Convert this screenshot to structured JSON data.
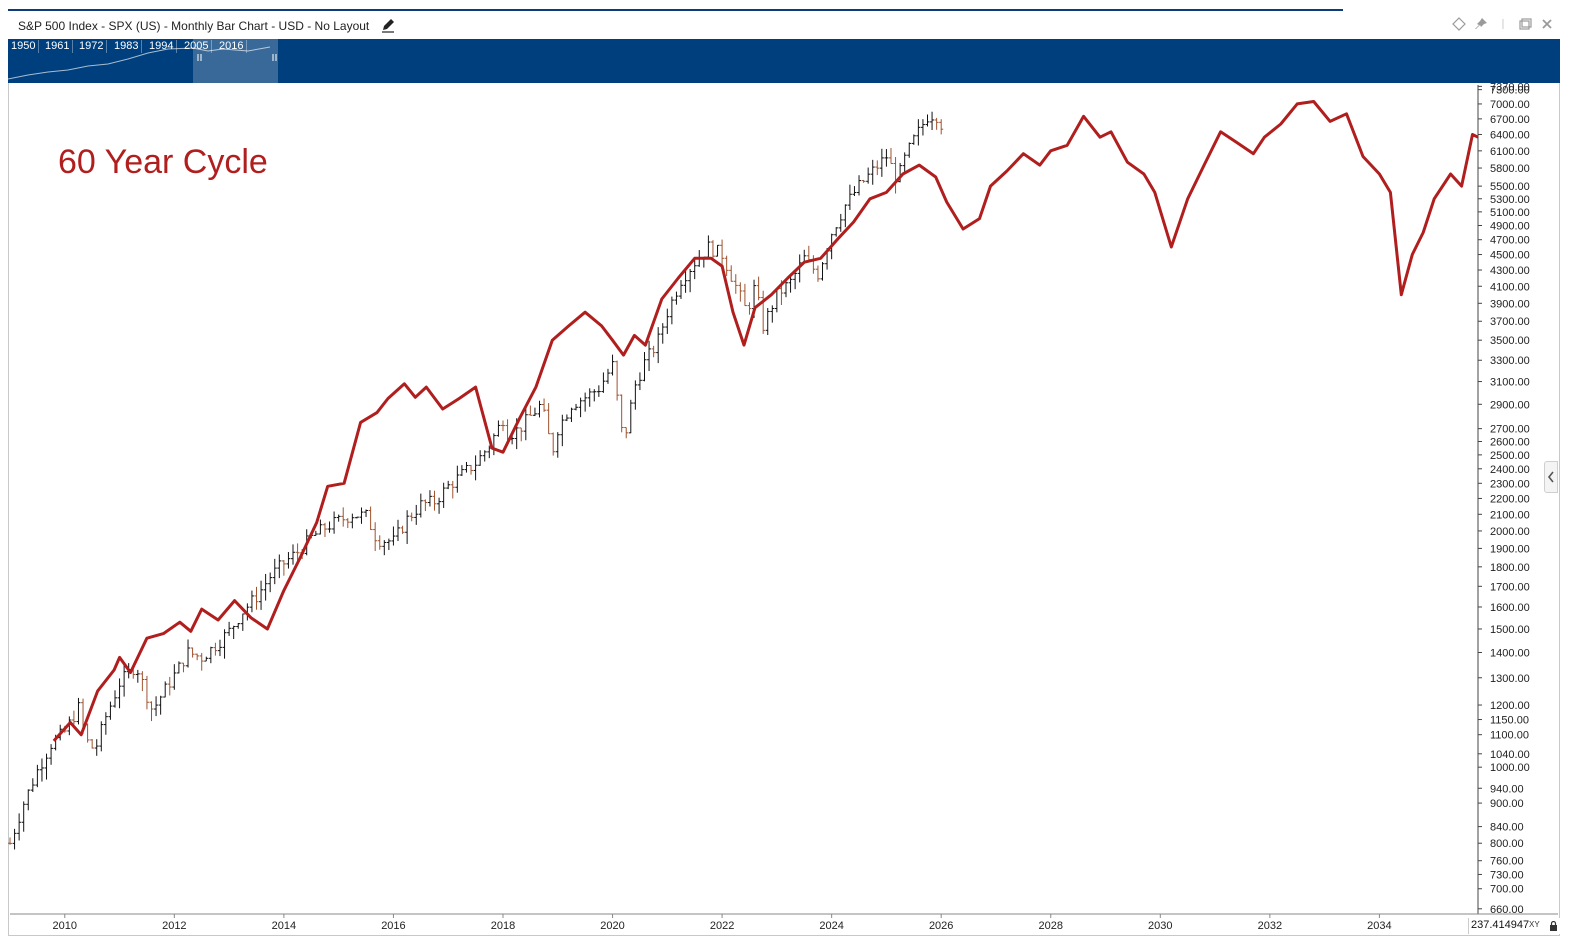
{
  "window": {
    "title": "S&P 500 Index - SPX (US) - Monthly Bar Chart - USD - No Layout",
    "edit_icon": "pencil-icon",
    "controls": [
      "diamond-icon",
      "pin-icon",
      "separator",
      "restore-icon",
      "close-icon"
    ]
  },
  "navigator": {
    "years": [
      "1950",
      "1961",
      "1972",
      "1983",
      "1994",
      "2005",
      "2016"
    ]
  },
  "annotation": {
    "text": "60 Year Cycle"
  },
  "readout": {
    "value": "237.414947",
    "mode": "XY",
    "lock_icon": "lock-icon"
  },
  "colors": {
    "navigator_bg": "#003f7d",
    "cycle_line": "#b01e1e",
    "up_bar": "#111111",
    "down_bar": "#a0522d"
  },
  "chart_data": {
    "type": "line",
    "scale": "log",
    "x_ticks": [
      "2010",
      "2012",
      "2014",
      "2016",
      "2018",
      "2020",
      "2022",
      "2024",
      "2026",
      "2028",
      "2030",
      "2032",
      "2034"
    ],
    "y_ticks": [
      "7370.00",
      "7300.00",
      "7000.00",
      "6700.00",
      "6400.00",
      "6100.00",
      "5800.00",
      "5500.00",
      "5300.00",
      "5100.00",
      "4900.00",
      "4700.00",
      "4500.00",
      "4300.00",
      "4100.00",
      "3900.00",
      "3700.00",
      "3500.00",
      "3300.00",
      "3100.00",
      "2900.00",
      "2700.00",
      "2600.00",
      "2500.00",
      "2400.00",
      "2300.00",
      "2200.00",
      "2100.00",
      "2000.00",
      "1900.00",
      "1800.00",
      "1700.00",
      "1600.00",
      "1500.00",
      "1400.00",
      "1300.00",
      "1200.00",
      "1150.00",
      "1100.00",
      "1040.00",
      "1000.00",
      "940.00",
      "900.00",
      "840.00",
      "800.00",
      "760.00",
      "730.00",
      "700.00",
      "660.00"
    ],
    "ylim": [
      650,
      7400
    ],
    "xlim": [
      2009.0,
      2035.8
    ],
    "series": [
      {
        "kind": "ohlc_monthly",
        "points": [
          [
            2009.0,
            800
          ],
          [
            2009.25,
            900
          ],
          [
            2009.5,
            990
          ],
          [
            2009.75,
            1070
          ],
          [
            2010.0,
            1110
          ],
          [
            2010.25,
            1190
          ],
          [
            2010.4,
            1080
          ],
          [
            2010.55,
            1050
          ],
          [
            2010.75,
            1160
          ],
          [
            2011.0,
            1280
          ],
          [
            2011.3,
            1350
          ],
          [
            2011.6,
            1180
          ],
          [
            2011.75,
            1230
          ],
          [
            2012.0,
            1310
          ],
          [
            2012.25,
            1400
          ],
          [
            2012.5,
            1380
          ],
          [
            2012.75,
            1430
          ],
          [
            2013.0,
            1490
          ],
          [
            2013.25,
            1580
          ],
          [
            2013.5,
            1650
          ],
          [
            2013.75,
            1750
          ],
          [
            2014.0,
            1820
          ],
          [
            2014.25,
            1880
          ],
          [
            2014.5,
            1960
          ],
          [
            2014.75,
            2020
          ],
          [
            2015.0,
            2060
          ],
          [
            2015.25,
            2100
          ],
          [
            2015.5,
            2090
          ],
          [
            2015.7,
            1950
          ],
          [
            2016.0,
            1940
          ],
          [
            2016.25,
            2070
          ],
          [
            2016.5,
            2160
          ],
          [
            2016.75,
            2180
          ],
          [
            2017.0,
            2280
          ],
          [
            2017.25,
            2360
          ],
          [
            2017.5,
            2440
          ],
          [
            2017.75,
            2570
          ],
          [
            2018.0,
            2780
          ],
          [
            2018.1,
            2650
          ],
          [
            2018.3,
            2700
          ],
          [
            2018.5,
            2800
          ],
          [
            2018.7,
            2900
          ],
          [
            2018.9,
            2520
          ],
          [
            2019.0,
            2700
          ],
          [
            2019.25,
            2900
          ],
          [
            2019.5,
            2960
          ],
          [
            2019.75,
            3040
          ],
          [
            2020.0,
            3250
          ],
          [
            2020.2,
            2580
          ],
          [
            2020.4,
            3050
          ],
          [
            2020.6,
            3300
          ],
          [
            2020.8,
            3450
          ],
          [
            2021.0,
            3800
          ],
          [
            2021.25,
            4180
          ],
          [
            2021.5,
            4400
          ],
          [
            2021.75,
            4600
          ],
          [
            2022.0,
            4500
          ],
          [
            2022.25,
            4100
          ],
          [
            2022.45,
            3800
          ],
          [
            2022.6,
            4100
          ],
          [
            2022.75,
            3650
          ],
          [
            2023.0,
            4000
          ],
          [
            2023.25,
            4150
          ],
          [
            2023.5,
            4450
          ],
          [
            2023.75,
            4250
          ],
          [
            2024.0,
            4800
          ],
          [
            2024.25,
            5200
          ],
          [
            2024.5,
            5500
          ],
          [
            2024.75,
            5750
          ],
          [
            2025.0,
            6000
          ],
          [
            2025.2,
            5600
          ],
          [
            2025.35,
            6000
          ],
          [
            2025.5,
            6300
          ],
          [
            2025.75,
            6750
          ],
          [
            2025.9,
            6800
          ],
          [
            2026.0,
            6600
          ]
        ]
      },
      {
        "kind": "cycle_projection",
        "points": [
          [
            2009.8,
            1080
          ],
          [
            2010.1,
            1140
          ],
          [
            2010.3,
            1100
          ],
          [
            2010.6,
            1250
          ],
          [
            2010.9,
            1330
          ],
          [
            2011.0,
            1380
          ],
          [
            2011.2,
            1320
          ],
          [
            2011.5,
            1460
          ],
          [
            2011.8,
            1480
          ],
          [
            2012.1,
            1530
          ],
          [
            2012.3,
            1490
          ],
          [
            2012.5,
            1590
          ],
          [
            2012.8,
            1540
          ],
          [
            2013.1,
            1630
          ],
          [
            2013.4,
            1550
          ],
          [
            2013.7,
            1500
          ],
          [
            2014.0,
            1680
          ],
          [
            2014.3,
            1850
          ],
          [
            2014.6,
            2050
          ],
          [
            2014.8,
            2280
          ],
          [
            2015.1,
            2300
          ],
          [
            2015.4,
            2750
          ],
          [
            2015.7,
            2830
          ],
          [
            2015.9,
            2950
          ],
          [
            2016.2,
            3080
          ],
          [
            2016.4,
            2960
          ],
          [
            2016.6,
            3050
          ],
          [
            2016.9,
            2860
          ],
          [
            2017.2,
            2950
          ],
          [
            2017.5,
            3050
          ],
          [
            2017.8,
            2550
          ],
          [
            2018.0,
            2520
          ],
          [
            2018.3,
            2780
          ],
          [
            2018.6,
            3050
          ],
          [
            2018.9,
            3500
          ],
          [
            2019.2,
            3650
          ],
          [
            2019.5,
            3800
          ],
          [
            2019.8,
            3650
          ],
          [
            2020.0,
            3500
          ],
          [
            2020.2,
            3350
          ],
          [
            2020.4,
            3550
          ],
          [
            2020.6,
            3450
          ],
          [
            2020.9,
            3950
          ],
          [
            2021.2,
            4200
          ],
          [
            2021.5,
            4450
          ],
          [
            2021.8,
            4450
          ],
          [
            2022.0,
            4350
          ],
          [
            2022.2,
            3800
          ],
          [
            2022.4,
            3450
          ],
          [
            2022.6,
            3850
          ],
          [
            2022.9,
            4000
          ],
          [
            2023.2,
            4200
          ],
          [
            2023.5,
            4400
          ],
          [
            2023.8,
            4450
          ],
          [
            2024.1,
            4700
          ],
          [
            2024.4,
            4950
          ],
          [
            2024.7,
            5300
          ],
          [
            2025.0,
            5400
          ],
          [
            2025.3,
            5700
          ],
          [
            2025.6,
            5850
          ],
          [
            2025.9,
            5650
          ],
          [
            2026.1,
            5250
          ],
          [
            2026.4,
            4850
          ],
          [
            2026.7,
            5000
          ],
          [
            2026.9,
            5500
          ],
          [
            2027.2,
            5750
          ],
          [
            2027.5,
            6050
          ],
          [
            2027.8,
            5850
          ],
          [
            2028.0,
            6100
          ],
          [
            2028.3,
            6200
          ],
          [
            2028.6,
            6750
          ],
          [
            2028.9,
            6350
          ],
          [
            2029.1,
            6450
          ],
          [
            2029.4,
            5900
          ],
          [
            2029.7,
            5700
          ],
          [
            2029.9,
            5400
          ],
          [
            2030.2,
            4600
          ],
          [
            2030.5,
            5300
          ],
          [
            2030.8,
            5850
          ],
          [
            2031.1,
            6450
          ],
          [
            2031.4,
            6250
          ],
          [
            2031.7,
            6050
          ],
          [
            2031.9,
            6350
          ],
          [
            2032.2,
            6600
          ],
          [
            2032.5,
            7000
          ],
          [
            2032.8,
            7050
          ],
          [
            2033.1,
            6650
          ],
          [
            2033.4,
            6800
          ],
          [
            2033.7,
            6000
          ],
          [
            2034.0,
            5700
          ],
          [
            2034.2,
            5400
          ],
          [
            2034.4,
            4000
          ],
          [
            2034.6,
            4500
          ],
          [
            2034.8,
            4800
          ],
          [
            2035.0,
            5300
          ],
          [
            2035.3,
            5700
          ],
          [
            2035.5,
            5500
          ],
          [
            2035.7,
            6400
          ],
          [
            2035.8,
            6350
          ]
        ]
      }
    ]
  }
}
